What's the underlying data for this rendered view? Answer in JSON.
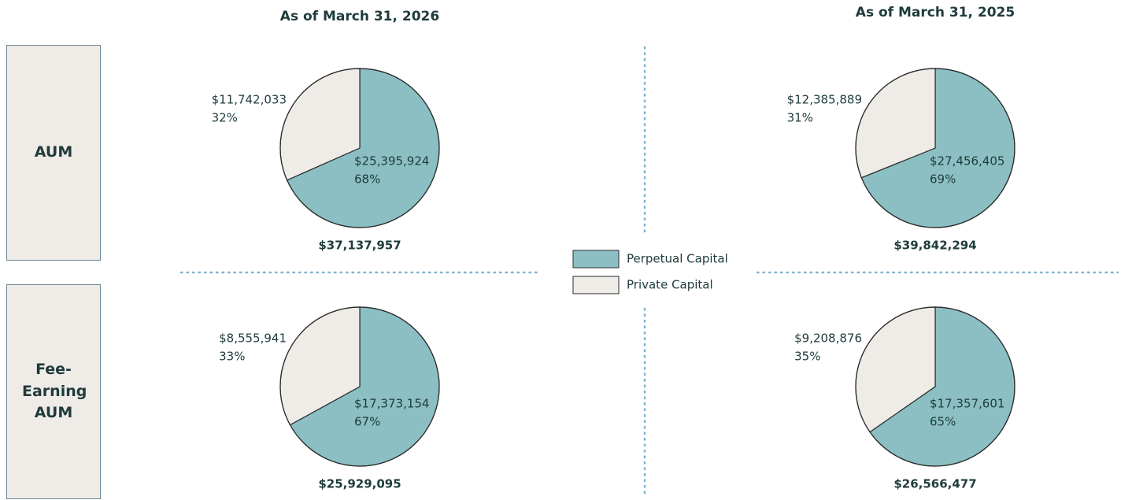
{
  "columns": [
    "As of March 31, 2026",
    "As of March 31, 2025"
  ],
  "rows": [
    "AUM",
    "Fee-Earning AUM"
  ],
  "chart_data": [
    {
      "type": "pie",
      "categories": [
        "Perpetual Capital",
        "Private Capital"
      ],
      "colors": [
        "#8bbfc4",
        "#efebe7"
      ],
      "values": [
        25395924,
        11742033
      ],
      "value_labels": [
        "$25,395,924",
        "$11,742,033"
      ],
      "percents": [
        68,
        32
      ],
      "percent_labels": [
        "68%",
        "32%"
      ],
      "total": 37137957,
      "total_label": "$37,137,957"
    },
    {
      "type": "pie",
      "categories": [
        "Perpetual Capital",
        "Private Capital"
      ],
      "colors": [
        "#8bbfc4",
        "#efebe7"
      ],
      "values": [
        27456405,
        12385889
      ],
      "value_labels": [
        "$27,456,405",
        "$12,385,889"
      ],
      "percents": [
        69,
        31
      ],
      "percent_labels": [
        "69%",
        "31%"
      ],
      "total": 39842294,
      "total_label": "$39,842,294"
    },
    {
      "type": "pie",
      "categories": [
        "Perpetual Capital",
        "Private Capital"
      ],
      "colors": [
        "#8bbfc4",
        "#efebe7"
      ],
      "values": [
        17373154,
        8555941
      ],
      "value_labels": [
        "$17,373,154",
        "$8,555,941"
      ],
      "percents": [
        67,
        33
      ],
      "percent_labels": [
        "67%",
        "33%"
      ],
      "total": 25929095,
      "total_label": "$25,929,095"
    },
    {
      "type": "pie",
      "categories": [
        "Perpetual Capital",
        "Private Capital"
      ],
      "colors": [
        "#8bbfc4",
        "#efebe7"
      ],
      "values": [
        17357601,
        9208876
      ],
      "value_labels": [
        "$17,357,601",
        "$9,208,876"
      ],
      "percents": [
        65,
        35
      ],
      "percent_labels": [
        "65%",
        "35%"
      ],
      "total": 26566477,
      "total_label": "$26,566,477"
    }
  ]
}
